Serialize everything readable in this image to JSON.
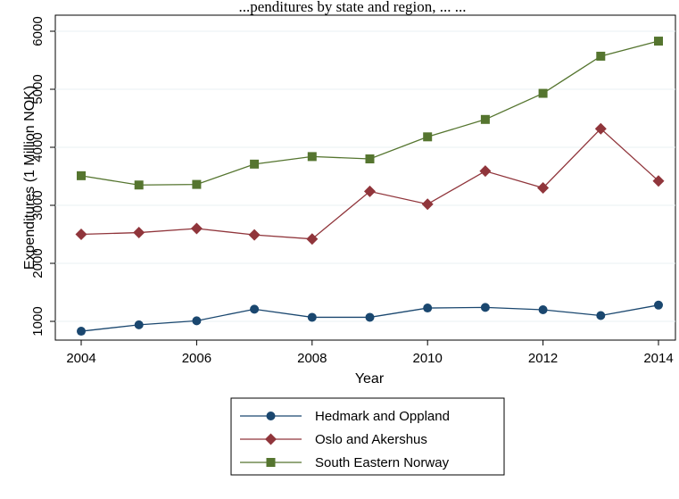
{
  "chart_data": {
    "type": "line",
    "title": "...penditures by state and region, ...  ...",
    "xlabel": "Year",
    "ylabel": "Expenditures (1 Million NOK)",
    "x": [
      2004,
      2005,
      2006,
      2007,
      2008,
      2009,
      2010,
      2011,
      2012,
      2013,
      2014
    ],
    "x_ticks": [
      "2004",
      "2006",
      "2008",
      "2010",
      "2012",
      "2014"
    ],
    "y_ticks": [
      "1000",
      "2000",
      "3000",
      "4000",
      "5000",
      "6000"
    ],
    "xlim": [
      2004,
      2014
    ],
    "ylim": [
      800,
      6000
    ],
    "grid": "horizontal",
    "legend_position": "bottom",
    "series": [
      {
        "name": "Hedmark and Oppland",
        "marker": "circle",
        "color": "#1a476f",
        "values": [
          830,
          940,
          1010,
          1210,
          1070,
          1070,
          1230,
          1240,
          1200,
          1100,
          1280
        ]
      },
      {
        "name": "Oslo and Akershus",
        "marker": "diamond",
        "color": "#90353b",
        "values": [
          2500,
          2530,
          2600,
          2490,
          2420,
          3240,
          3020,
          3590,
          3300,
          4320,
          3420
        ]
      },
      {
        "name": "South Eastern Norway",
        "marker": "square",
        "color": "#55752f",
        "values": [
          3510,
          3350,
          3360,
          3710,
          3840,
          3800,
          4180,
          4480,
          4930,
          5570,
          5830
        ]
      }
    ]
  }
}
